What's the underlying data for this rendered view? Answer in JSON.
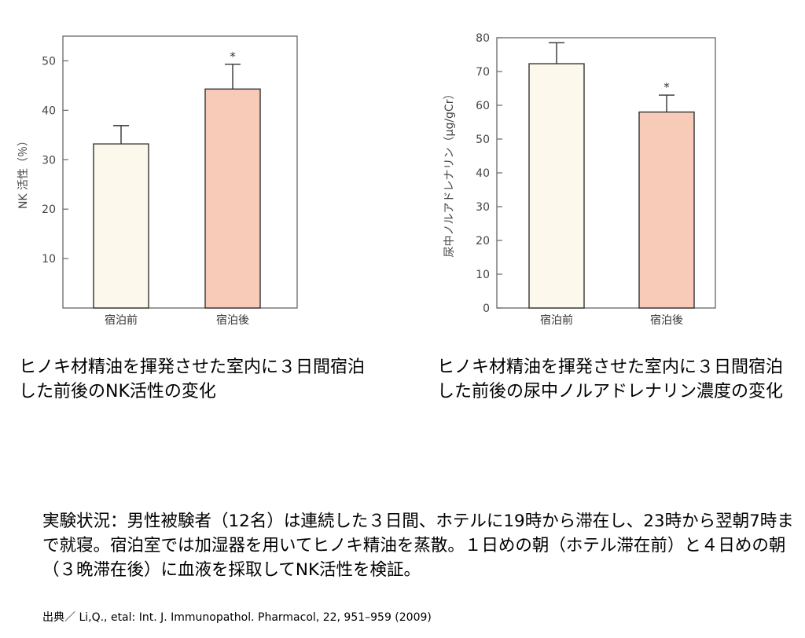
{
  "chart_data": [
    {
      "type": "bar",
      "categories": [
        "宿泊前",
        "宿泊後"
      ],
      "values": [
        33.2,
        44.3
      ],
      "errors": [
        3.7,
        5.0
      ],
      "significance": [
        "",
        "*"
      ],
      "ylabel": "NK 活性（％）",
      "ylim": [
        0,
        55
      ],
      "yticks": [
        10,
        20,
        30,
        40,
        50
      ],
      "colors": [
        "#fdf8ec",
        "#f7cbb8"
      ],
      "grid": false
    },
    {
      "type": "bar",
      "categories": [
        "宿泊前",
        "宿泊後"
      ],
      "values": [
        72.3,
        58.0
      ],
      "errors": [
        6.2,
        5.0
      ],
      "significance": [
        "",
        "*"
      ],
      "ylabel": "尿中ノルアドレナリン（µg/gCr）",
      "ylim": [
        0,
        80
      ],
      "yticks": [
        0,
        10,
        20,
        30,
        40,
        50,
        60,
        70,
        80
      ],
      "colors": [
        "#fdf8ec",
        "#f7cbb8"
      ],
      "grid": false
    }
  ],
  "captions": [
    "ヒノキ材精油を揮発させた室内に３日間宿泊した前後のNK活性の変化",
    "ヒノキ材精油を揮発させた室内に３日間宿泊した前後の尿中ノルアドレナリン濃度の変化"
  ],
  "notes": "実験状況：男性被験者（12名）は連続した３日間、ホテルに19時から滞在し、23時から翌朝7時まで就寝。宿泊室では加湿器を用いてヒノキ精油を蒸散。１日めの朝（ホテル滞在前）と４日めの朝（３晩滞在後）に血液を採取してNK活性を検証。",
  "source": "出典／ Li,Q., etal: Int. J. Immunopathol. Pharmacol, 22, 951–959 (2009)"
}
